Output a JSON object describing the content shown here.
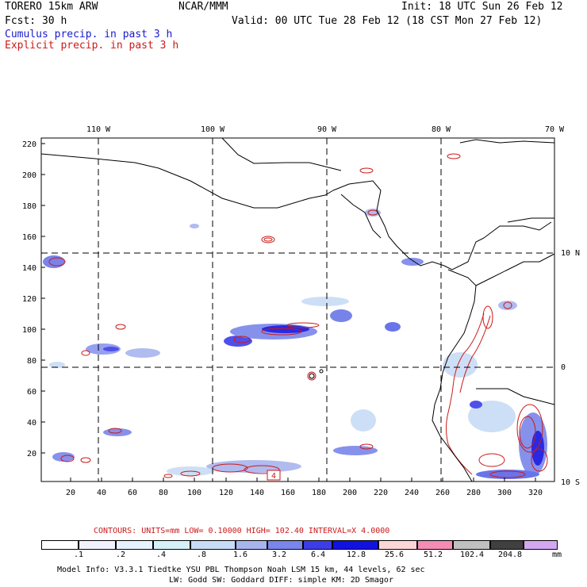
{
  "header": {
    "model": "TORERO  15km ARW",
    "org": "NCAR/MMM",
    "init": "Init: 18 UTC Sun 26 Feb 12",
    "fcst": "Fcst:   30 h",
    "valid": "Valid: 00 UTC Tue 28 Feb 12 (18 CST Mon 27 Feb 12)",
    "cumulus": "Cumulus precip. in past 3 h",
    "explicit": "Explicit precip. in past 3 h"
  },
  "map": {
    "lon_labels": [
      "110 W",
      "100 W",
      "90 W",
      "80 W",
      "70 W"
    ],
    "lat_labels": [
      "10 N",
      "0",
      "10 S"
    ],
    "y_ticks": [
      "220",
      "200",
      "180",
      "160",
      "140",
      "120",
      "100",
      "80",
      "60",
      "40",
      "20"
    ],
    "x_ticks": [
      "20",
      "40",
      "60",
      "80",
      "100",
      "120",
      "140",
      "160",
      "180",
      "200",
      "220",
      "240",
      "260",
      "280",
      "300",
      "320"
    ],
    "max_label": "4"
  },
  "contours": {
    "text": "CONTOURS:  UNITS=mm  LOW= 0.10000       HIGH=  102.40      INTERVAL=X  4.0000"
  },
  "legend": {
    "labels": [
      ".1",
      ".2",
      ".4",
      ".8",
      "1.6",
      "3.2",
      "6.4",
      "12.8",
      "25.6",
      "51.2",
      "102.4",
      "204.8"
    ],
    "units": "mm",
    "colors": [
      "#ffffff",
      "#f2f2ff",
      "#e6f2ff",
      "#d6f0f8",
      "#c8dcf6",
      "#a8b4ee",
      "#7a86ea",
      "#3d3de8",
      "#1212e0",
      "#fcd6d6",
      "#f58cb4",
      "#c0c0c0",
      "#404040",
      "#d4a8f0"
    ]
  },
  "footer": {
    "line1": "Model Info: V3.3.1    Tiedtke YSU PBL  Thompson    Noah LSM  15 km,   44 levels,   62 sec",
    "line2": "LW: Godd SW: Goddard DIFF: simple KM: 2D Smagor"
  },
  "colors": {
    "cumulus": "#1a1acc",
    "explicit": "#cc1a1a",
    "coast": "#000000"
  }
}
